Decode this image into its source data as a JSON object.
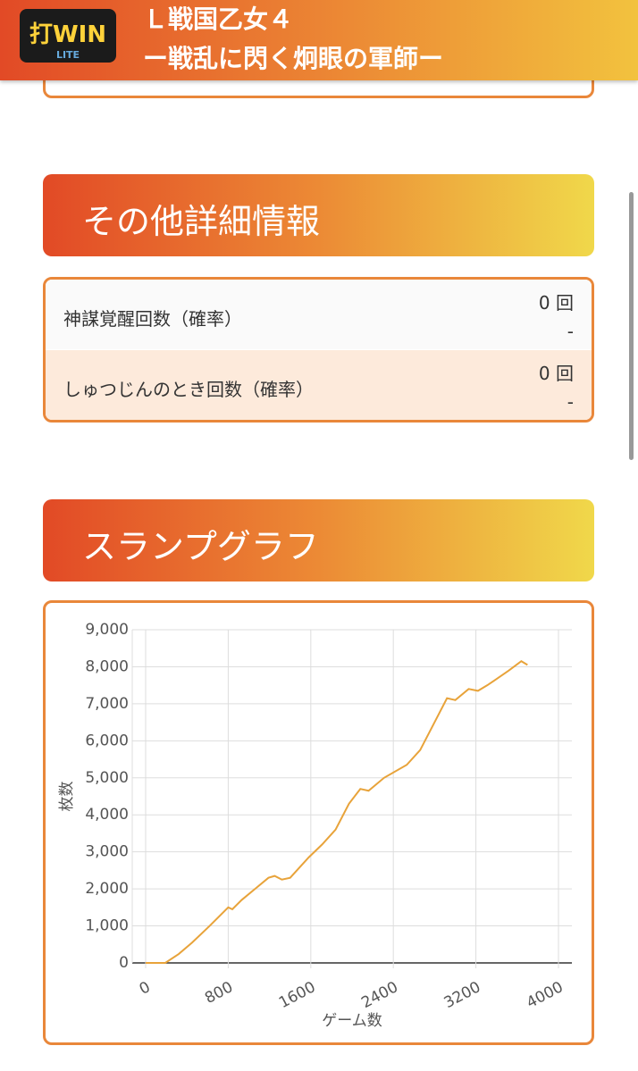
{
  "header": {
    "logo_main": "打WIN",
    "logo_sub": "LITE",
    "title_line1": "Ｌ戦国乙女４",
    "title_line2": "ー戦乱に閃く炯眼の軍師ー"
  },
  "details": {
    "heading": "その他詳細情報",
    "rows": [
      {
        "label": "神謀覚醒回数（確率）",
        "count": "0 回",
        "rate": "-"
      },
      {
        "label": "しゅつじんのとき回数（確率）",
        "count": "0 回",
        "rate": "-"
      }
    ]
  },
  "graph_heading": "スランプグラフ",
  "chart_data": {
    "type": "line",
    "x_label": "ゲーム数",
    "y_label": "枚数",
    "color": "#e8a33a",
    "x": [
      0,
      190,
      320,
      450,
      620,
      800,
      840,
      930,
      1060,
      1190,
      1250,
      1320,
      1400,
      1580,
      1710,
      1840,
      1970,
      2080,
      2160,
      2310,
      2530,
      2660,
      2790,
      2920,
      3000,
      3130,
      3220,
      3310,
      3390,
      3520,
      3640,
      3700
    ],
    "values": [
      0,
      0,
      240,
      550,
      1000,
      1500,
      1450,
      1700,
      2000,
      2300,
      2350,
      2250,
      2300,
      2850,
      3200,
      3600,
      4300,
      4700,
      4650,
      5000,
      5350,
      5750,
      6450,
      7150,
      7100,
      7400,
      7350,
      7500,
      7650,
      7900,
      8150,
      8050
    ],
    "xlim": [
      -130,
      4130
    ],
    "ylim": [
      0,
      9000
    ],
    "xticks": [
      0,
      800,
      1600,
      2400,
      3200,
      4000
    ],
    "yticks": [
      0,
      {
        "value": 1000,
        "label": "1,000"
      },
      {
        "value": 2000,
        "label": "2,000"
      },
      {
        "value": 3000,
        "label": "3,000"
      },
      {
        "value": 4000,
        "label": "4,000"
      },
      {
        "value": 5000,
        "label": "5,000"
      },
      {
        "value": 6000,
        "label": "6,000"
      },
      {
        "value": 7000,
        "label": "7,000"
      },
      {
        "value": 8000,
        "label": "8,000"
      },
      {
        "value": 9000,
        "label": "9,000"
      }
    ],
    "grid": true
  }
}
